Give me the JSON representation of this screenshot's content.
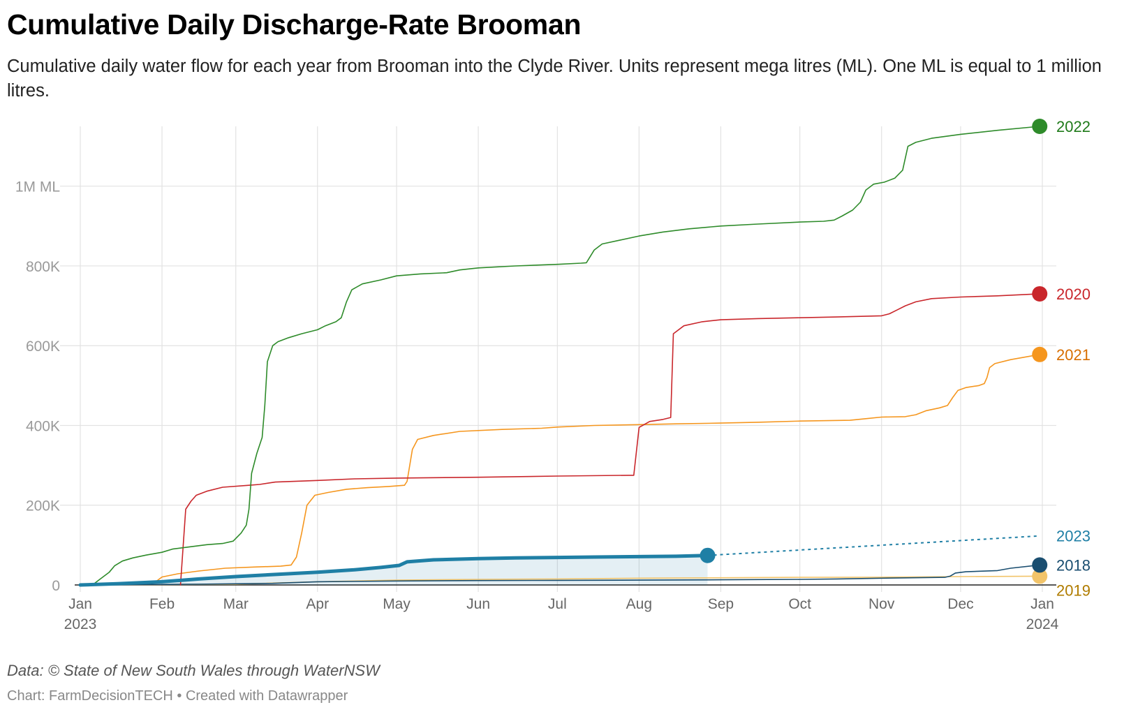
{
  "header": {
    "title": "Cumulative Daily Discharge-Rate Brooman",
    "subtitle": "Cumulative daily water flow for each year from Brooman into the Clyde River. Units represent mega litres (ML). One ML is equal to 1 million litres."
  },
  "footer": {
    "source": "Data: © State of New South Wales through WaterNSW",
    "credit_author": "Chart: FarmDecisionTECH",
    "credit_sep": " • ",
    "credit_tool": "Created with Datawrapper"
  },
  "chart_data": {
    "type": "line",
    "title": "Cumulative Daily Discharge-Rate Brooman",
    "xlabel": "",
    "ylabel": "",
    "x_unit": "date",
    "xlim": [
      "2023-01-01",
      "2024-01-01"
    ],
    "ylim": [
      0,
      1150000
    ],
    "grid": true,
    "legend": "direct labels at line ends (right)",
    "x_ticks": [
      {
        "date": "2023-01-01",
        "label": "Jan",
        "sublabel": "2023"
      },
      {
        "date": "2023-02-01",
        "label": "Feb",
        "sublabel": ""
      },
      {
        "date": "2023-03-01",
        "label": "Mar",
        "sublabel": ""
      },
      {
        "date": "2023-04-01",
        "label": "Apr",
        "sublabel": ""
      },
      {
        "date": "2023-05-01",
        "label": "May",
        "sublabel": ""
      },
      {
        "date": "2023-06-01",
        "label": "Jun",
        "sublabel": ""
      },
      {
        "date": "2023-07-01",
        "label": "Jul",
        "sublabel": ""
      },
      {
        "date": "2023-08-01",
        "label": "Aug",
        "sublabel": ""
      },
      {
        "date": "2023-09-01",
        "label": "Sep",
        "sublabel": ""
      },
      {
        "date": "2023-10-01",
        "label": "Oct",
        "sublabel": ""
      },
      {
        "date": "2023-11-01",
        "label": "Nov",
        "sublabel": ""
      },
      {
        "date": "2023-12-01",
        "label": "Dec",
        "sublabel": ""
      },
      {
        "date": "2024-01-01",
        "label": "Jan",
        "sublabel": "2024"
      }
    ],
    "y_ticks": [
      {
        "value": 0,
        "label": "0"
      },
      {
        "value": 200000,
        "label": "200K"
      },
      {
        "value": 400000,
        "label": "400K"
      },
      {
        "value": 600000,
        "label": "600K"
      },
      {
        "value": 800000,
        "label": "800K"
      },
      {
        "value": 1000000,
        "label": "1M ML"
      }
    ],
    "series": [
      {
        "name": "2022",
        "color": "#2e8b2a",
        "label_color": "#1f7a1a",
        "width": 1.6,
        "end_dot": true,
        "points": [
          [
            "2023-01-01",
            0
          ],
          [
            "2023-01-06",
            2000
          ],
          [
            "2023-01-08",
            12000
          ],
          [
            "2023-01-10",
            22000
          ],
          [
            "2023-01-12",
            32000
          ],
          [
            "2023-01-14",
            48000
          ],
          [
            "2023-01-17",
            60000
          ],
          [
            "2023-01-21",
            68000
          ],
          [
            "2023-01-26",
            75000
          ],
          [
            "2023-02-01",
            82000
          ],
          [
            "2023-02-05",
            90000
          ],
          [
            "2023-02-12",
            96000
          ],
          [
            "2023-02-18",
            101000
          ],
          [
            "2023-02-24",
            104000
          ],
          [
            "2023-02-28",
            110000
          ],
          [
            "2023-03-03",
            130000
          ],
          [
            "2023-03-05",
            150000
          ],
          [
            "2023-03-06",
            190000
          ],
          [
            "2023-03-07",
            280000
          ],
          [
            "2023-03-09",
            330000
          ],
          [
            "2023-03-11",
            370000
          ],
          [
            "2023-03-12",
            450000
          ],
          [
            "2023-03-13",
            560000
          ],
          [
            "2023-03-15",
            600000
          ],
          [
            "2023-03-17",
            610000
          ],
          [
            "2023-03-21",
            620000
          ],
          [
            "2023-03-26",
            630000
          ],
          [
            "2023-04-01",
            640000
          ],
          [
            "2023-04-04",
            650000
          ],
          [
            "2023-04-08",
            660000
          ],
          [
            "2023-04-10",
            670000
          ],
          [
            "2023-04-12",
            710000
          ],
          [
            "2023-04-14",
            740000
          ],
          [
            "2023-04-18",
            755000
          ],
          [
            "2023-04-25",
            765000
          ],
          [
            "2023-05-01",
            775000
          ],
          [
            "2023-05-10",
            780000
          ],
          [
            "2023-05-20",
            783000
          ],
          [
            "2023-05-25",
            790000
          ],
          [
            "2023-06-01",
            795000
          ],
          [
            "2023-06-15",
            800000
          ],
          [
            "2023-07-01",
            804000
          ],
          [
            "2023-07-10",
            807000
          ],
          [
            "2023-07-12",
            808000
          ],
          [
            "2023-07-15",
            840000
          ],
          [
            "2023-07-18",
            855000
          ],
          [
            "2023-07-25",
            865000
          ],
          [
            "2023-08-01",
            875000
          ],
          [
            "2023-08-10",
            885000
          ],
          [
            "2023-08-20",
            893000
          ],
          [
            "2023-09-01",
            900000
          ],
          [
            "2023-09-15",
            905000
          ],
          [
            "2023-10-01",
            910000
          ],
          [
            "2023-10-10",
            912000
          ],
          [
            "2023-10-14",
            915000
          ],
          [
            "2023-10-17",
            925000
          ],
          [
            "2023-10-21",
            940000
          ],
          [
            "2023-10-24",
            960000
          ],
          [
            "2023-10-26",
            990000
          ],
          [
            "2023-10-29",
            1005000
          ],
          [
            "2023-11-02",
            1010000
          ],
          [
            "2023-11-06",
            1020000
          ],
          [
            "2023-11-09",
            1040000
          ],
          [
            "2023-11-11",
            1100000
          ],
          [
            "2023-11-14",
            1110000
          ],
          [
            "2023-11-20",
            1120000
          ],
          [
            "2023-12-01",
            1130000
          ],
          [
            "2023-12-15",
            1140000
          ],
          [
            "2023-12-31",
            1150000
          ]
        ]
      },
      {
        "name": "2020",
        "color": "#c9262b",
        "label_color": "#c9262b",
        "width": 1.6,
        "end_dot": true,
        "points": [
          [
            "2023-02-08",
            0
          ],
          [
            "2023-02-10",
            190000
          ],
          [
            "2023-02-12",
            210000
          ],
          [
            "2023-02-14",
            225000
          ],
          [
            "2023-02-18",
            235000
          ],
          [
            "2023-02-24",
            245000
          ],
          [
            "2023-03-06",
            250000
          ],
          [
            "2023-03-10",
            252000
          ],
          [
            "2023-03-16",
            258000
          ],
          [
            "2023-04-01",
            262000
          ],
          [
            "2023-04-15",
            266000
          ],
          [
            "2023-05-01",
            268000
          ],
          [
            "2023-06-01",
            270000
          ],
          [
            "2023-07-01",
            273000
          ],
          [
            "2023-07-28",
            275000
          ],
          [
            "2023-07-30",
            275000
          ],
          [
            "2023-08-01",
            395000
          ],
          [
            "2023-08-05",
            410000
          ],
          [
            "2023-08-10",
            415000
          ],
          [
            "2023-08-13",
            420000
          ],
          [
            "2023-08-14",
            630000
          ],
          [
            "2023-08-18",
            650000
          ],
          [
            "2023-08-25",
            660000
          ],
          [
            "2023-09-01",
            665000
          ],
          [
            "2023-09-15",
            668000
          ],
          [
            "2023-10-01",
            670000
          ],
          [
            "2023-10-15",
            672000
          ],
          [
            "2023-11-01",
            675000
          ],
          [
            "2023-11-04",
            680000
          ],
          [
            "2023-11-07",
            690000
          ],
          [
            "2023-11-10",
            700000
          ],
          [
            "2023-11-14",
            710000
          ],
          [
            "2023-11-20",
            718000
          ],
          [
            "2023-12-01",
            722000
          ],
          [
            "2023-12-15",
            725000
          ],
          [
            "2023-12-31",
            730000
          ]
        ]
      },
      {
        "name": "2021",
        "color": "#f5961e",
        "label_color": "#d86e00",
        "width": 1.6,
        "end_dot": true,
        "points": [
          [
            "2023-01-01",
            0
          ],
          [
            "2023-01-29",
            5000
          ],
          [
            "2023-02-01",
            20000
          ],
          [
            "2023-02-07",
            28000
          ],
          [
            "2023-02-15",
            35000
          ],
          [
            "2023-02-25",
            42000
          ],
          [
            "2023-03-08",
            45000
          ],
          [
            "2023-03-18",
            47000
          ],
          [
            "2023-03-22",
            50000
          ],
          [
            "2023-03-24",
            70000
          ],
          [
            "2023-03-26",
            130000
          ],
          [
            "2023-03-28",
            200000
          ],
          [
            "2023-03-31",
            225000
          ],
          [
            "2023-04-05",
            232000
          ],
          [
            "2023-04-12",
            240000
          ],
          [
            "2023-04-20",
            244000
          ],
          [
            "2023-04-28",
            247000
          ],
          [
            "2023-05-04",
            250000
          ],
          [
            "2023-05-05",
            260000
          ],
          [
            "2023-05-07",
            340000
          ],
          [
            "2023-05-09",
            365000
          ],
          [
            "2023-05-15",
            375000
          ],
          [
            "2023-05-25",
            385000
          ],
          [
            "2023-06-10",
            390000
          ],
          [
            "2023-06-25",
            393000
          ],
          [
            "2023-07-01",
            396000
          ],
          [
            "2023-07-15",
            400000
          ],
          [
            "2023-08-01",
            402000
          ],
          [
            "2023-08-15",
            404000
          ],
          [
            "2023-09-01",
            406000
          ],
          [
            "2023-09-15",
            408000
          ],
          [
            "2023-10-01",
            411000
          ],
          [
            "2023-10-20",
            413000
          ],
          [
            "2023-10-26",
            417000
          ],
          [
            "2023-11-01",
            421000
          ],
          [
            "2023-11-10",
            422000
          ],
          [
            "2023-11-14",
            427000
          ],
          [
            "2023-11-18",
            437000
          ],
          [
            "2023-11-23",
            444000
          ],
          [
            "2023-11-26",
            450000
          ],
          [
            "2023-11-28",
            470000
          ],
          [
            "2023-11-30",
            488000
          ],
          [
            "2023-12-03",
            495000
          ],
          [
            "2023-12-08",
            500000
          ],
          [
            "2023-12-10",
            505000
          ],
          [
            "2023-12-11",
            520000
          ],
          [
            "2023-12-12",
            545000
          ],
          [
            "2023-12-14",
            555000
          ],
          [
            "2023-12-20",
            565000
          ],
          [
            "2023-12-31",
            578000
          ]
        ]
      },
      {
        "name": "2023",
        "color": "#1f7fa5",
        "label_color": "#1f7fa5",
        "width": 5,
        "end_dot": true,
        "area": true,
        "projection": {
          "to": [
            "2023-12-31",
            123000
          ]
        },
        "points": [
          [
            "2023-01-01",
            0
          ],
          [
            "2023-01-15",
            3000
          ],
          [
            "2023-02-01",
            8000
          ],
          [
            "2023-02-15",
            15000
          ],
          [
            "2023-03-01",
            21000
          ],
          [
            "2023-03-15",
            26000
          ],
          [
            "2023-04-01",
            32000
          ],
          [
            "2023-04-15",
            38000
          ],
          [
            "2023-04-25",
            44000
          ],
          [
            "2023-05-02",
            49000
          ],
          [
            "2023-05-05",
            58000
          ],
          [
            "2023-05-15",
            63000
          ],
          [
            "2023-06-01",
            66000
          ],
          [
            "2023-06-15",
            68000
          ],
          [
            "2023-07-01",
            69000
          ],
          [
            "2023-07-15",
            70000
          ],
          [
            "2023-08-01",
            71000
          ],
          [
            "2023-08-15",
            72000
          ],
          [
            "2023-08-27",
            74000
          ]
        ]
      },
      {
        "name": "2018",
        "color": "#1a4e70",
        "label_color": "#1a4e70",
        "width": 1.6,
        "end_dot": true,
        "points": [
          [
            "2023-01-01",
            0
          ],
          [
            "2023-02-15",
            2000
          ],
          [
            "2023-03-01",
            3000
          ],
          [
            "2023-03-15",
            4000
          ],
          [
            "2023-04-01",
            8000
          ],
          [
            "2023-05-01",
            10000
          ],
          [
            "2023-06-01",
            11000
          ],
          [
            "2023-07-01",
            11500
          ],
          [
            "2023-08-01",
            12000
          ],
          [
            "2023-09-01",
            13000
          ],
          [
            "2023-10-01",
            14000
          ],
          [
            "2023-10-15",
            15000
          ],
          [
            "2023-11-01",
            17000
          ],
          [
            "2023-11-25",
            19000
          ],
          [
            "2023-11-27",
            22000
          ],
          [
            "2023-11-29",
            30000
          ],
          [
            "2023-12-03",
            33000
          ],
          [
            "2023-12-15",
            36000
          ],
          [
            "2023-12-20",
            42000
          ],
          [
            "2023-12-31",
            50000
          ]
        ]
      },
      {
        "name": "2019",
        "color": "#f2c46a",
        "label_color": "#b07c00",
        "width": 1.6,
        "end_dot": true,
        "points": [
          [
            "2023-01-01",
            0
          ],
          [
            "2023-03-01",
            2000
          ],
          [
            "2023-04-01",
            8000
          ],
          [
            "2023-05-01",
            12000
          ],
          [
            "2023-06-01",
            14000
          ],
          [
            "2023-07-01",
            15000
          ],
          [
            "2023-08-01",
            17000
          ],
          [
            "2023-09-01",
            18000
          ],
          [
            "2023-10-01",
            19000
          ],
          [
            "2023-11-01",
            19500
          ],
          [
            "2023-12-01",
            21000
          ],
          [
            "2023-12-31",
            22000
          ]
        ]
      }
    ]
  }
}
